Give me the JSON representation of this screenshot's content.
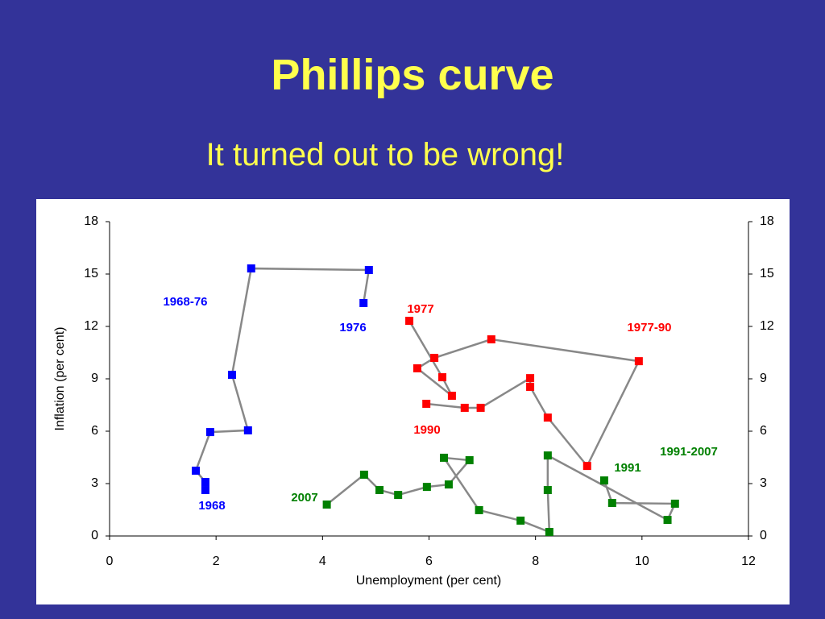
{
  "chart_data": {
    "type": "line",
    "title": "Phillips curve",
    "subtitle": "It turned out to be wrong!",
    "x_label": "Unemployment (per cent)",
    "y_label": "Inflation (per cent)",
    "xlim": [
      0,
      12
    ],
    "xticks": [
      0,
      2,
      4,
      6,
      8,
      10,
      12
    ],
    "ylim": [
      0,
      18
    ],
    "yticks": [
      0,
      3,
      6,
      9,
      12,
      15,
      18
    ],
    "line_color": "#888888",
    "series": [
      {
        "name": "1968-76",
        "color": "#0000ff",
        "x": [
          1.8,
          1.8,
          1.62,
          1.89,
          2.6,
          2.3,
          2.66,
          4.87,
          4.77
        ],
        "values": [
          2.63,
          3.09,
          3.74,
          5.95,
          6.05,
          9.23,
          15.32,
          15.23,
          13.34
        ]
      },
      {
        "name": "1977-90",
        "color": "#ff0000",
        "x": [
          5.63,
          6.25,
          6.43,
          5.78,
          6.1,
          7.17,
          9.94,
          8.97,
          8.23,
          7.9,
          7.9,
          6.97,
          6.67,
          5.95
        ],
        "values": [
          12.32,
          9.09,
          8.03,
          9.6,
          10.2,
          11.26,
          10.01,
          4.01,
          6.78,
          8.54,
          9.04,
          7.34,
          7.34,
          7.57
        ]
      },
      {
        "name": "1991-2007",
        "color": "#008000",
        "x": [
          9.29,
          9.44,
          10.62,
          10.48,
          8.23,
          8.23,
          8.26,
          7.72,
          6.94,
          6.28,
          6.76,
          6.37,
          5.96,
          5.42,
          5.07,
          4.78,
          4.08
        ],
        "values": [
          3.18,
          1.89,
          1.85,
          0.92,
          4.61,
          2.63,
          0.23,
          0.88,
          1.48,
          4.48,
          4.34,
          2.95,
          2.81,
          2.35,
          2.63,
          3.51,
          1.8
        ]
      }
    ],
    "annotations": [
      {
        "text": "1968",
        "color": "#0000ff"
      },
      {
        "text": "1976",
        "color": "#0000ff"
      },
      {
        "text": "1977",
        "color": "#ff0000"
      },
      {
        "text": "1990",
        "color": "#ff0000"
      },
      {
        "text": "1991",
        "color": "#008000"
      },
      {
        "text": "2007",
        "color": "#008000"
      }
    ]
  }
}
